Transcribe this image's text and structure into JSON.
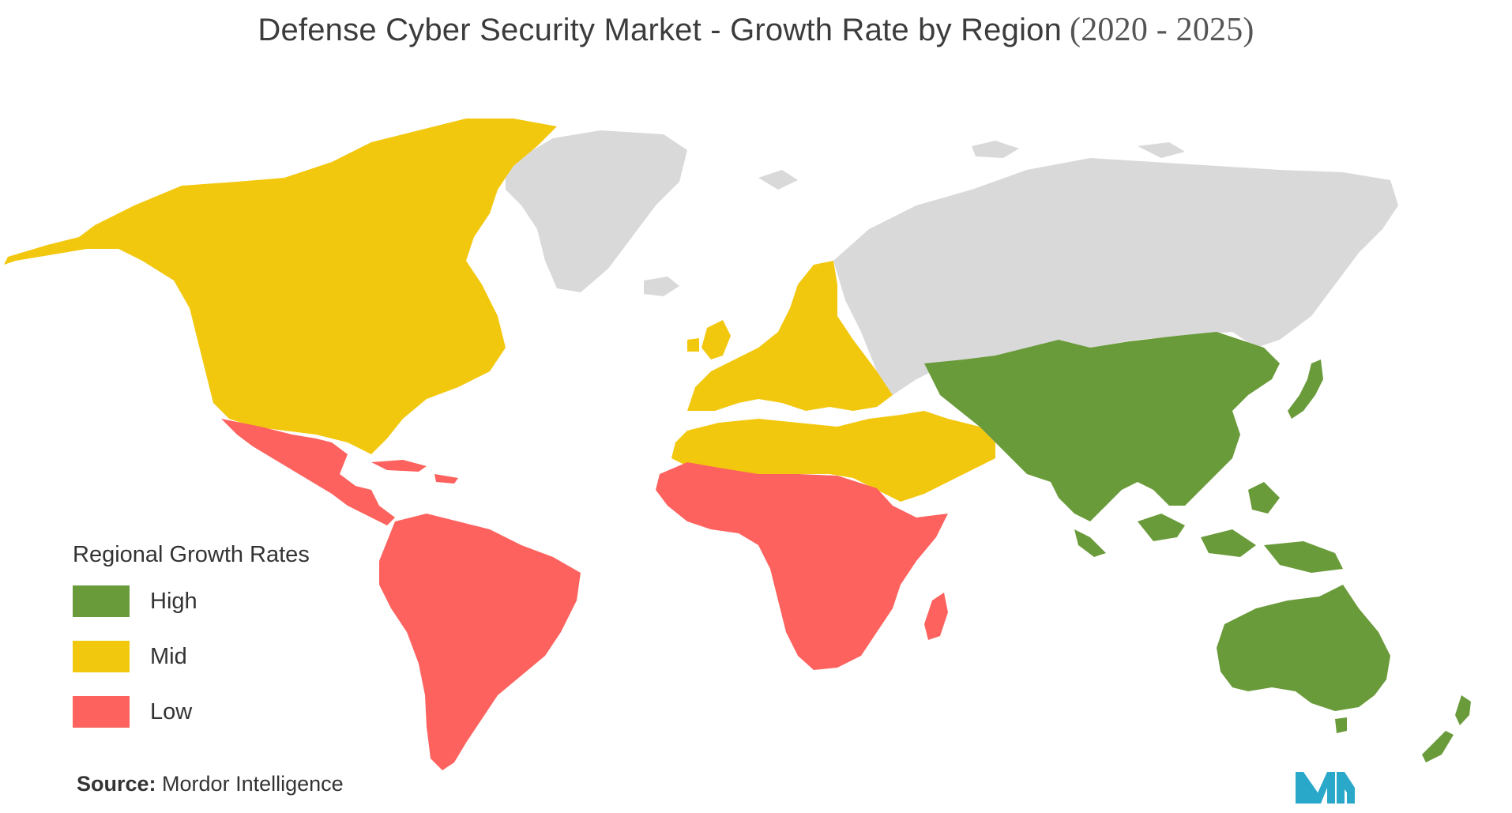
{
  "title": {
    "main": "Defense Cyber Security Market - Growth Rate by Region",
    "years": "(2020 - 2025)"
  },
  "legend": {
    "title": "Regional Growth Rates",
    "items": [
      {
        "label": "High",
        "color": "#6a9b3a"
      },
      {
        "label": "Mid",
        "color": "#f2c80f"
      },
      {
        "label": "Low",
        "color": "#fd625e"
      }
    ]
  },
  "colors": {
    "no_data": "#d9d9d9",
    "logo": "#2aa8c9"
  },
  "regions": [
    {
      "name": "North America",
      "rate": "Mid"
    },
    {
      "name": "Europe",
      "rate": "Mid"
    },
    {
      "name": "Middle East & North Africa",
      "rate": "Mid"
    },
    {
      "name": "Latin America",
      "rate": "Low"
    },
    {
      "name": "Sub-Saharan Africa",
      "rate": "Low"
    },
    {
      "name": "Asia-Pacific",
      "rate": "High"
    }
  ],
  "source": {
    "label": "Source:",
    "name": "Mordor Intelligence"
  }
}
